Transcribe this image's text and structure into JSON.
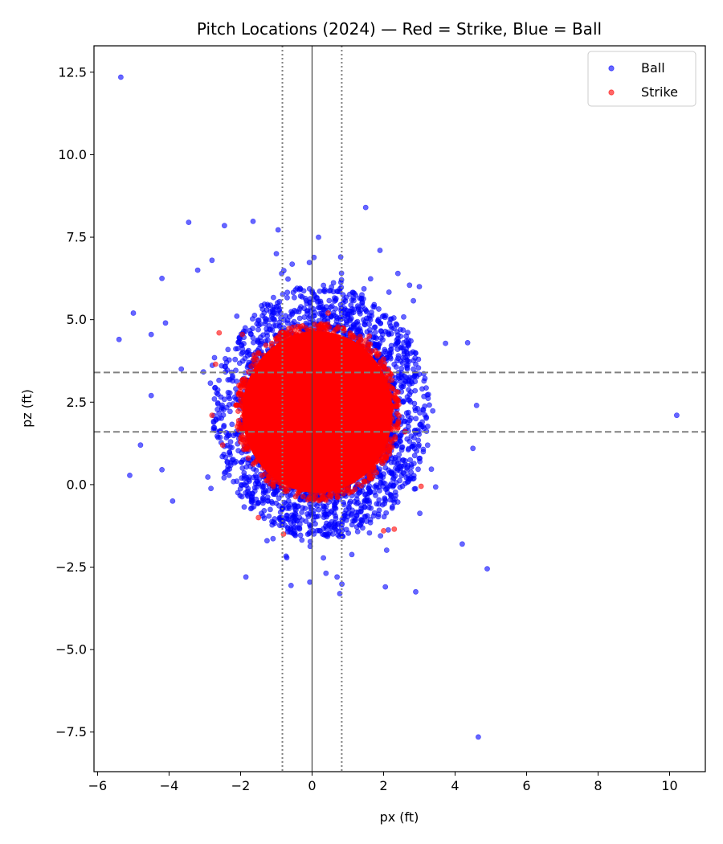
{
  "chart_data": {
    "type": "scatter",
    "title": "Pitch Locations (2024) — Red = Strike, Blue = Ball",
    "xlabel": "px (ft)",
    "ylabel": "pz (ft)",
    "xlim": [
      -6.1,
      11.0
    ],
    "ylim": [
      -8.7,
      13.3
    ],
    "x_ticks": [
      -6,
      -4,
      -2,
      0,
      2,
      4,
      6,
      8,
      10
    ],
    "x_tick_labels": [
      "−6",
      "−4",
      "−2",
      "0",
      "2",
      "4",
      "6",
      "8",
      "10"
    ],
    "y_ticks": [
      -7.5,
      -5.0,
      -2.5,
      0.0,
      2.5,
      5.0,
      7.5,
      10.0,
      12.5
    ],
    "y_tick_labels": [
      "−7.5",
      "−5.0",
      "−2.5",
      "0.0",
      "2.5",
      "5.0",
      "7.5",
      "10.0",
      "12.5"
    ],
    "grid": false,
    "legend_position": "top-right",
    "reference_lines": [
      {
        "orientation": "vertical",
        "value": 0.0,
        "style": "solid",
        "color": "#444444"
      },
      {
        "orientation": "vertical",
        "value": -0.83,
        "style": "dotted",
        "color": "#808080"
      },
      {
        "orientation": "vertical",
        "value": 0.83,
        "style": "dotted",
        "color": "#808080"
      },
      {
        "orientation": "horizontal",
        "value": 1.6,
        "style": "dashed",
        "color": "#808080"
      },
      {
        "orientation": "horizontal",
        "value": 3.4,
        "style": "dashed",
        "color": "#808080"
      }
    ],
    "series": [
      {
        "name": "Ball",
        "color": "#0000ff",
        "distribution": {
          "x_center": 0.25,
          "x_spread": 1.35,
          "y_center": 2.1,
          "y_spread": 1.9
        },
        "points": [
          [
            -5.35,
            12.35
          ],
          [
            1.5,
            8.4
          ],
          [
            -3.45,
            7.95
          ],
          [
            -1.65,
            7.98
          ],
          [
            -2.45,
            7.85
          ],
          [
            -0.95,
            7.72
          ],
          [
            0.18,
            7.5
          ],
          [
            1.9,
            7.1
          ],
          [
            -4.2,
            6.25
          ],
          [
            -5.0,
            5.2
          ],
          [
            -5.4,
            4.4
          ],
          [
            -4.1,
            4.9
          ],
          [
            -4.5,
            4.55
          ],
          [
            -5.1,
            0.28
          ],
          [
            -4.8,
            1.2
          ],
          [
            -4.2,
            0.45
          ],
          [
            -4.5,
            2.7
          ],
          [
            -3.9,
            -0.5
          ],
          [
            10.2,
            2.1
          ],
          [
            4.9,
            -2.55
          ],
          [
            4.65,
            -7.65
          ],
          [
            2.9,
            -3.25
          ],
          [
            2.05,
            -3.1
          ],
          [
            -1.85,
            -2.8
          ],
          [
            0.7,
            -2.8
          ],
          [
            4.35,
            4.3
          ],
          [
            4.5,
            1.1
          ],
          [
            4.6,
            2.4
          ],
          [
            4.2,
            -1.8
          ],
          [
            3.0,
            6.0
          ],
          [
            2.4,
            6.4
          ],
          [
            -3.2,
            6.5
          ],
          [
            -2.8,
            6.8
          ],
          [
            -1.0,
            7.0
          ],
          [
            0.8,
            6.9
          ]
        ]
      },
      {
        "name": "Strike",
        "color": "#ff0000",
        "distribution": {
          "x_center": 0.15,
          "x_spread": 0.85,
          "y_center": 2.2,
          "y_spread": 1.15
        },
        "points": [
          [
            -2.8,
            2.1
          ],
          [
            -2.6,
            4.6
          ],
          [
            -1.95,
            4.55
          ],
          [
            1.6,
            4.5
          ],
          [
            0.45,
            5.2
          ],
          [
            -0.8,
            -1.5
          ],
          [
            2.3,
            -1.35
          ],
          [
            3.05,
            -0.05
          ],
          [
            -2.7,
            3.65
          ],
          [
            2.4,
            2.8
          ],
          [
            -2.5,
            1.2
          ],
          [
            2.6,
            1.6
          ],
          [
            -1.5,
            -1.0
          ],
          [
            2.0,
            -1.4
          ],
          [
            1.2,
            4.2
          ]
        ]
      }
    ]
  }
}
